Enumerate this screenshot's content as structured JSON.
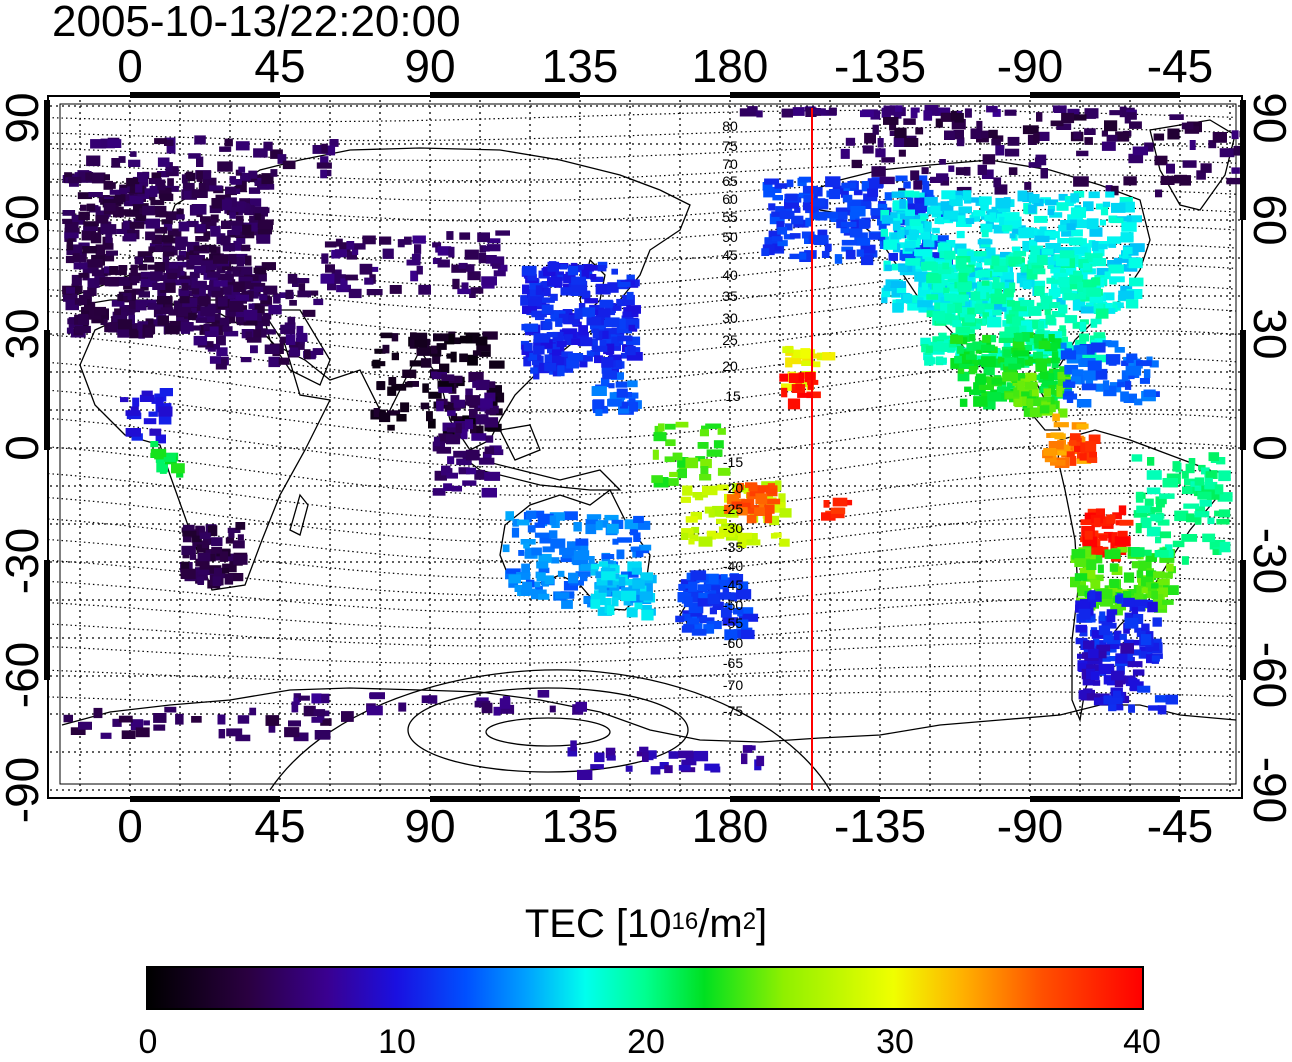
{
  "timestamp": "2005-10-13/22:20:00",
  "map": {
    "projection": "equirectangular",
    "longitude_ticks": [
      "0",
      "45",
      "90",
      "135",
      "180",
      "-135",
      "-90",
      "-45"
    ],
    "latitude_ticks": [
      "90",
      "60",
      "30",
      "0",
      "-30",
      "-60",
      "-90"
    ],
    "grid": true,
    "contour_labels_north": [
      "80",
      "75",
      "70",
      "65",
      "60",
      "55",
      "50",
      "45",
      "40",
      "35",
      "30",
      "25",
      "20",
      "15"
    ],
    "contour_labels_south": [
      "-15",
      "-20",
      "-25",
      "-30",
      "-35",
      "-40",
      "-45",
      "-50",
      "-55",
      "-60",
      "-65",
      "-70",
      "-75"
    ],
    "marker_line_color": "#ff0000"
  },
  "colorbar": {
    "title_prefix": "TEC  [10",
    "title_sup1": "16",
    "title_mid": "/m",
    "title_sup2": "2",
    "title_suffix": "]",
    "ticks": [
      "0",
      "10",
      "20",
      "30",
      "40"
    ],
    "range": [
      0,
      40
    ],
    "colors": [
      "#000000",
      "#3a0090",
      "#0050ff",
      "#00ffee",
      "#00e020",
      "#f0ff00",
      "#ff0000"
    ]
  }
}
